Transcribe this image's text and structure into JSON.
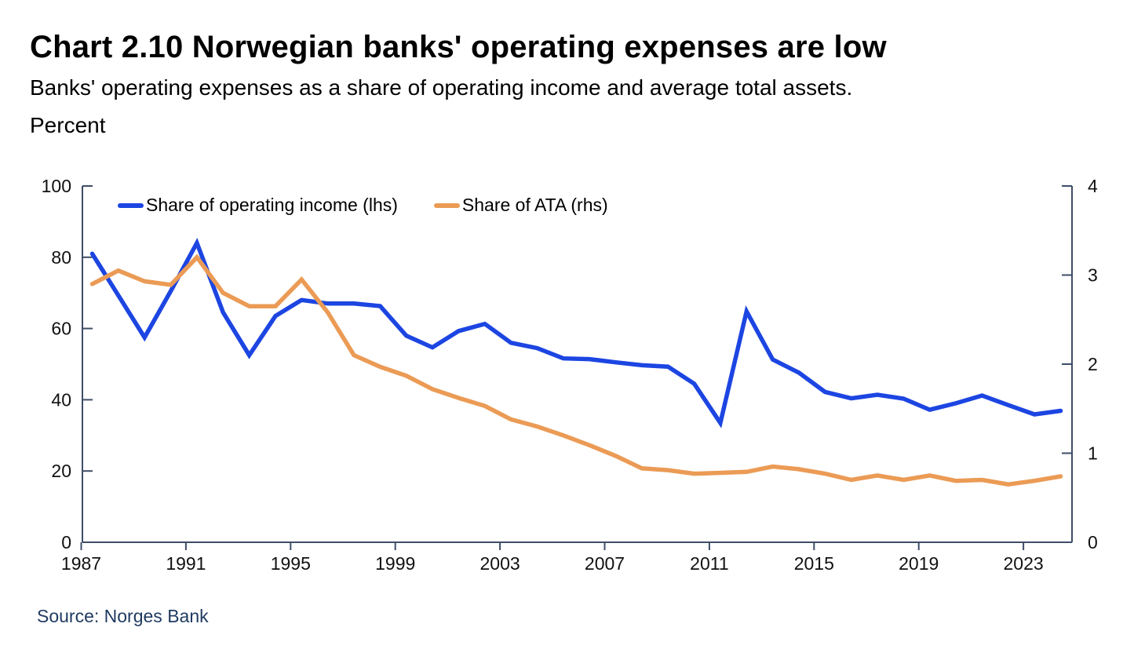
{
  "chart_data": {
    "type": "line",
    "title": "Chart 2.10 Norwegian banks' operating expenses are low",
    "subtitle": "Banks' operating expenses as a share of operating income and average total assets.",
    "unit_label": "Percent",
    "grid": false,
    "legend_position": "inside-top-left",
    "x": [
      1987,
      1988,
      1989,
      1990,
      1991,
      1992,
      1993,
      1994,
      1995,
      1996,
      1997,
      1998,
      1999,
      2000,
      2001,
      2002,
      2003,
      2004,
      2005,
      2006,
      2007,
      2008,
      2009,
      2010,
      2011,
      2012,
      2013,
      2014,
      2015,
      2016,
      2017,
      2018,
      2019,
      2020,
      2021,
      2022,
      2023,
      2024
    ],
    "x_ticks": [
      1987,
      1991,
      1995,
      1999,
      2003,
      2007,
      2011,
      2015,
      2019,
      2023
    ],
    "axes": {
      "left": {
        "ticks": [
          0,
          20,
          40,
          60,
          80,
          100
        ],
        "range": [
          0,
          100
        ]
      },
      "right": {
        "ticks": [
          0,
          1,
          2,
          3,
          4
        ],
        "range": [
          0,
          4
        ]
      }
    },
    "series": [
      {
        "name": "Share of operating income (lhs)",
        "axis": "left",
        "color": "#1c45e2",
        "values": [
          81,
          69.3,
          57.5,
          70.5,
          84,
          64.5,
          52.5,
          63.5,
          68,
          67,
          67,
          66.3,
          58,
          54.7,
          59.3,
          61.3,
          56,
          54.5,
          51.6,
          51.4,
          50.5,
          49.7,
          49.3,
          44.5,
          33.5,
          64.8,
          51.3,
          47.6,
          42.2,
          40.4,
          41.4,
          40.3,
          37.2,
          39,
          41.2,
          38.5,
          35.9,
          36.9
        ]
      },
      {
        "name": "Share of ATA (rhs)",
        "axis": "right",
        "color": "#eb9b55",
        "values": [
          2.9,
          3.05,
          2.93,
          2.89,
          3.2,
          2.8,
          2.65,
          2.65,
          2.95,
          2.58,
          2.1,
          1.97,
          1.87,
          1.72,
          1.62,
          1.53,
          1.38,
          1.3,
          1.2,
          1.09,
          0.97,
          0.83,
          0.81,
          0.77,
          0.78,
          0.79,
          0.85,
          0.82,
          0.77,
          0.7,
          0.75,
          0.7,
          0.75,
          0.69,
          0.7,
          0.65,
          0.69,
          0.74
        ]
      }
    ]
  },
  "source": {
    "text": "Source: Norges Bank"
  },
  "colors": {
    "line_blue": "#1c45e2",
    "line_orange": "#eb9b55",
    "axis": "#3e4d68",
    "tick_label": "#111111",
    "source_text": "#1e3a5f"
  }
}
